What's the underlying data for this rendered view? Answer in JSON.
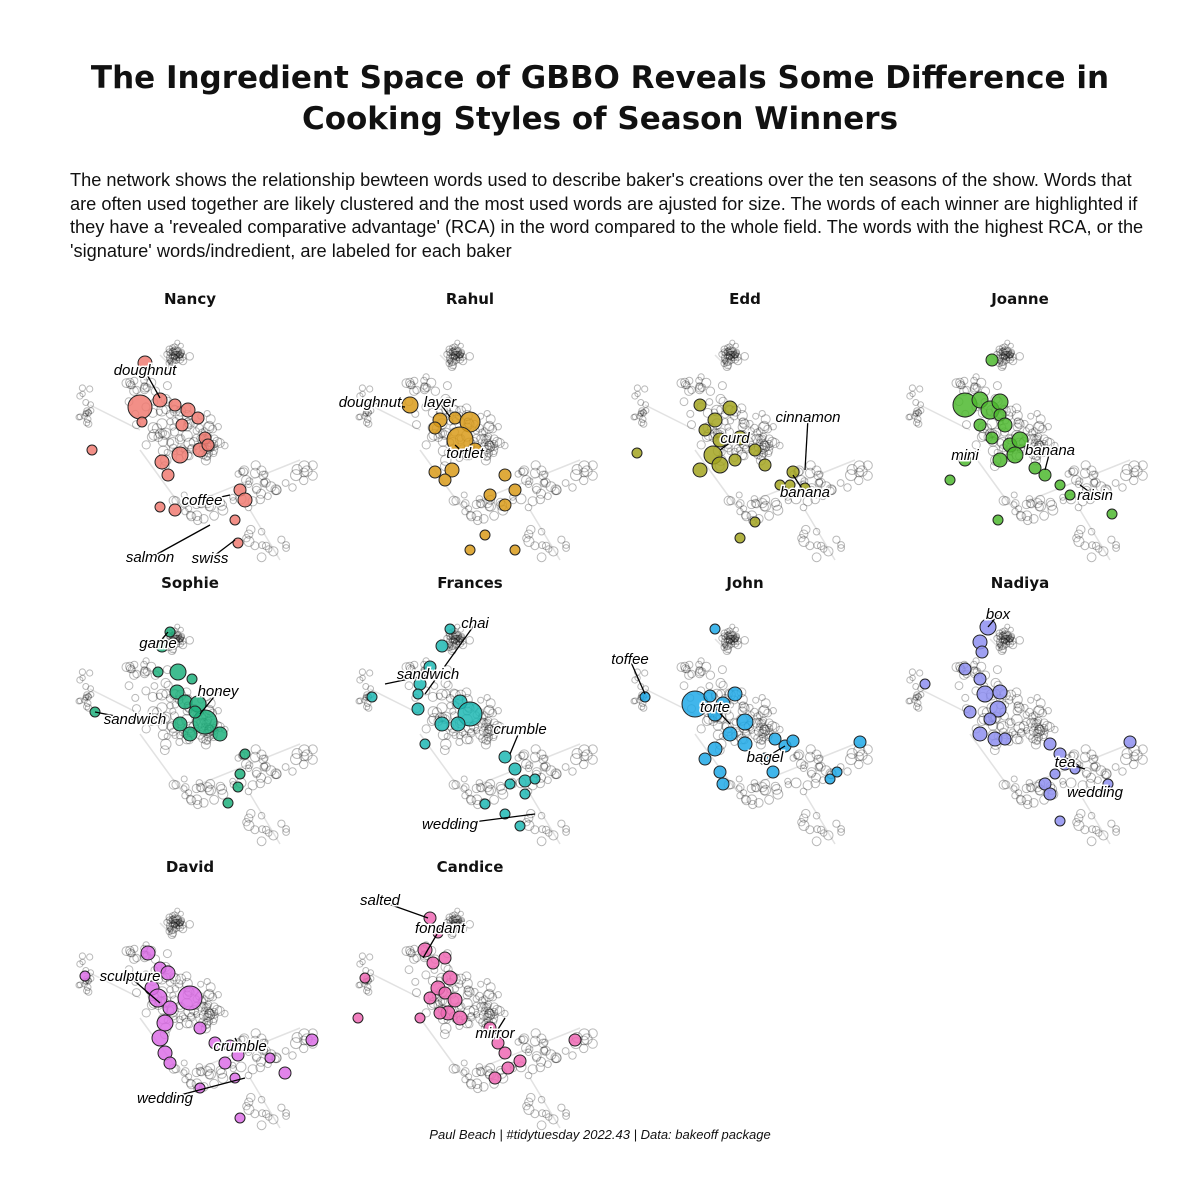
{
  "title": "The Ingredient Space of GBBO Reveals Some Difference in Cooking Styles of Season Winners",
  "subtitle": "The network shows the relationship bewteen words used to describe baker's creations over the ten seasons of the show. Words that are often used together are likely clustered and the most used words are ajusted for size. The words of each winner are highlighted if they have a 'revealed comparative advantage' (RCA) in the word compared to the whole field. The words with the highest RCA, or the 'signature' words/indredient, are labeled for each baker",
  "caption": "Paul Beach | #tidytuesday 2022.43 | Data: bakeoff package",
  "chart_data": {
    "type": "scatter",
    "description_type": "network small multiples",
    "panels": [
      {
        "baker": "Nancy",
        "color": "#f07b72",
        "labels": [
          "doughnut",
          "coffee",
          "salmon",
          "swiss"
        ]
      },
      {
        "baker": "Rahul",
        "color": "#d99b1a",
        "labels": [
          "doughnut",
          "layer",
          "tortlet"
        ]
      },
      {
        "baker": "Edd",
        "color": "#a3a520",
        "labels": [
          "cinnamon",
          "curd",
          "banana"
        ]
      },
      {
        "baker": "Joanne",
        "color": "#4db92f",
        "labels": [
          "mini",
          "banana",
          "raisin"
        ]
      },
      {
        "baker": "Sophie",
        "color": "#1fb07c",
        "labels": [
          "game",
          "honey",
          "sandwich"
        ]
      },
      {
        "baker": "Frances",
        "color": "#1fb9b4",
        "labels": [
          "chai",
          "sandwich",
          "crumble",
          "wedding"
        ]
      },
      {
        "baker": "John",
        "color": "#20a9e8",
        "labels": [
          "toffee",
          "torte",
          "bagel"
        ]
      },
      {
        "baker": "Nadiya",
        "color": "#8e8ff0",
        "labels": [
          "box",
          "tea",
          "wedding"
        ]
      },
      {
        "baker": "David",
        "color": "#dc6ee6",
        "labels": [
          "sculpture",
          "crumble",
          "wedding"
        ]
      },
      {
        "baker": "Candice",
        "color": "#ef69b4",
        "labels": [
          "salted",
          "fondant",
          "mirror"
        ]
      }
    ]
  }
}
